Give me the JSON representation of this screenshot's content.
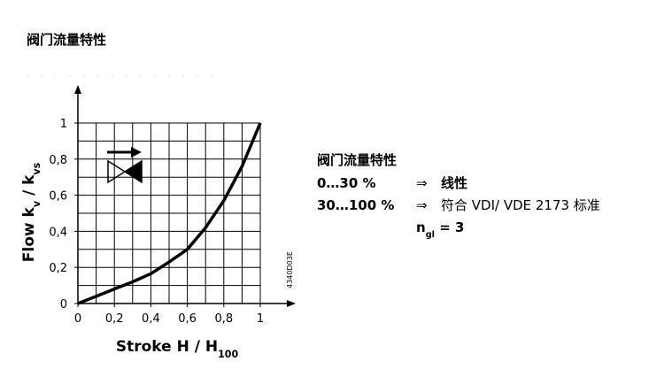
{
  "header": {
    "title": "阀门流量特性"
  },
  "chart_data": {
    "type": "line",
    "x_label": [
      {
        "text": "Stroke H / H"
      },
      {
        "sub": "100"
      }
    ],
    "y_label": [
      {
        "text": "Flow k"
      },
      {
        "sub": "v"
      },
      {
        "text": " / k"
      },
      {
        "sub": "vs"
      }
    ],
    "side_code": "4340D03E",
    "x": [
      0,
      0.1,
      0.2,
      0.3,
      0.4,
      0.5,
      0.6,
      0.7,
      0.8,
      0.9,
      1
    ],
    "series": [
      {
        "color": "#000000",
        "values": [
          0,
          0.04,
          0.08,
          0.12,
          0.165,
          0.23,
          0.3,
          0.42,
          0.57,
          0.76,
          1
        ]
      }
    ],
    "xlim": [
      0,
      1
    ],
    "ylim": [
      0,
      1
    ],
    "xticks": [
      0,
      {
        "value": 0.2,
        "label": "0,2"
      },
      {
        "value": 0.4,
        "label": "0,4"
      },
      {
        "value": 0.6,
        "label": "0,6"
      },
      {
        "value": 0.8,
        "label": "0,8"
      },
      1
    ],
    "yticks": [
      0,
      {
        "value": 0.2,
        "label": "0,2"
      },
      {
        "value": 0.4,
        "label": "0,4"
      },
      {
        "value": 0.6,
        "label": "0,6"
      },
      {
        "value": 0.8,
        "label": "0,8"
      },
      1
    ],
    "xgrid": [
      0.1,
      0.2,
      0.3,
      0.4,
      0.5,
      0.6,
      0.7,
      0.8,
      0.9,
      1
    ],
    "ygrid": [
      0.1,
      0.2,
      0.3,
      0.4,
      0.5,
      0.6,
      0.7,
      0.8,
      0.9,
      1
    ]
  },
  "legend_text": {
    "title": "阀门流量特性",
    "rows": [
      {
        "range": "0…30 %",
        "arrow": "⇒",
        "text": "线性"
      },
      {
        "range": "30…100 %",
        "arrow": "⇒",
        "text": "符合 VDI/ VDE 2173 标准"
      }
    ],
    "n": [
      {
        "text": "n"
      },
      {
        "sub": "gl"
      },
      {
        "text": " = 3"
      }
    ]
  }
}
